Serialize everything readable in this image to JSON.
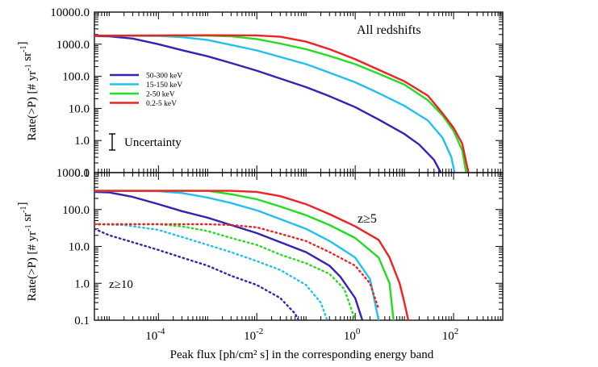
{
  "chart_data": [
    {
      "type": "line",
      "panel": "top",
      "ylabel": "Rate(>P) [# yr⁻¹ sr⁻¹]",
      "xlabel": "",
      "annotation": "All redshifts",
      "x_scale": "log",
      "y_scale": "log",
      "xlim": [
        5e-06,
        1000
      ],
      "ylim": [
        0.1,
        10000
      ],
      "y_tick_labels": [
        "10000.0",
        "1000.0",
        "100.0",
        "10.0",
        "1.0",
        "0.1"
      ],
      "legend": {
        "placement": "left",
        "entries": [
          "50-300 keV",
          "15-150 keV",
          "2-50 keV",
          "0.2-5 keV"
        ]
      },
      "uncertainty_label": "Uncertainty",
      "series": [
        {
          "name": "50-300 keV",
          "color": "#3a1fb5",
          "style": "solid",
          "points": [
            [
              5e-06,
              1800
            ],
            [
              1e-05,
              1750
            ],
            [
              3e-05,
              1500
            ],
            [
              0.0001,
              1000
            ],
            [
              0.0003,
              650
            ],
            [
              0.001,
              420
            ],
            [
              0.003,
              260
            ],
            [
              0.01,
              150
            ],
            [
              0.03,
              85
            ],
            [
              0.1,
              46
            ],
            [
              0.3,
              24
            ],
            [
              1,
              11
            ],
            [
              3,
              4.5
            ],
            [
              10,
              1.6
            ],
            [
              20,
              0.75
            ],
            [
              40,
              0.25
            ],
            [
              55,
              0.1
            ]
          ]
        },
        {
          "name": "15-150 keV",
          "color": "#22c0f0",
          "style": "solid",
          "points": [
            [
              5e-06,
              1850
            ],
            [
              0.0001,
              1800
            ],
            [
              0.0003,
              1650
            ],
            [
              0.001,
              1350
            ],
            [
              0.003,
              950
            ],
            [
              0.01,
              640
            ],
            [
              0.03,
              400
            ],
            [
              0.1,
              240
            ],
            [
              0.3,
              130
            ],
            [
              1,
              65
            ],
            [
              3,
              30
            ],
            [
              10,
              12
            ],
            [
              30,
              4.2
            ],
            [
              60,
              1.2
            ],
            [
              90,
              0.3
            ],
            [
              105,
              0.1
            ]
          ]
        },
        {
          "name": "2-50 keV",
          "color": "#22dd22",
          "style": "solid",
          "points": [
            [
              5e-06,
              1850
            ],
            [
              0.001,
              1850
            ],
            [
              0.003,
              1750
            ],
            [
              0.01,
              1450
            ],
            [
              0.03,
              1050
            ],
            [
              0.1,
              700
            ],
            [
              0.3,
              430
            ],
            [
              1,
              240
            ],
            [
              3,
              120
            ],
            [
              10,
              55
            ],
            [
              30,
              18
            ],
            [
              60,
              6
            ],
            [
              100,
              2
            ],
            [
              150,
              0.5
            ],
            [
              180,
              0.1
            ]
          ]
        },
        {
          "name": "0.2-5 keV",
          "color": "#ee2222",
          "style": "solid",
          "points": [
            [
              5e-06,
              1850
            ],
            [
              0.001,
              1900
            ],
            [
              0.01,
              1880
            ],
            [
              0.03,
              1700
            ],
            [
              0.1,
              1200
            ],
            [
              0.3,
              700
            ],
            [
              1,
              340
            ],
            [
              3,
              160
            ],
            [
              10,
              70
            ],
            [
              30,
              25
            ],
            [
              60,
              7
            ],
            [
              100,
              2.5
            ],
            [
              150,
              0.8
            ],
            [
              200,
              0.1
            ]
          ]
        }
      ]
    },
    {
      "type": "line",
      "panel": "bottom",
      "ylabel": "Rate(>P) [# yr⁻¹ sr⁻¹]",
      "xlabel": "Peak flux [ph/cm² s] in the corresponding energy band",
      "annotations": [
        "z≥5",
        "z≥10"
      ],
      "x_scale": "log",
      "y_scale": "log",
      "xlim": [
        5e-06,
        1000
      ],
      "ylim": [
        0.1,
        1000
      ],
      "y_tick_labels": [
        "1000.0",
        "100.0",
        "10.0",
        "1.0",
        "0.1"
      ],
      "x_tick_labels": [
        "10-4",
        "10-2",
        "100",
        "102"
      ],
      "series": [
        {
          "name": "50-300 keV (z≥5)",
          "color": "#3a1fb5",
          "style": "solid",
          "points": [
            [
              5e-06,
              300
            ],
            [
              1e-05,
              290
            ],
            [
              3e-05,
              220
            ],
            [
              0.0001,
              140
            ],
            [
              0.0003,
              90
            ],
            [
              0.001,
              60
            ],
            [
              0.003,
              38
            ],
            [
              0.01,
              23
            ],
            [
              0.03,
              13
            ],
            [
              0.1,
              7
            ],
            [
              0.3,
              3
            ],
            [
              0.5,
              1.5
            ],
            [
              1,
              0.4
            ],
            [
              1.4,
              0.1
            ]
          ]
        },
        {
          "name": "15-150 keV (z≥5)",
          "color": "#22c0f0",
          "style": "solid",
          "points": [
            [
              5e-06,
              320
            ],
            [
              0.0001,
              315
            ],
            [
              0.0003,
              280
            ],
            [
              0.001,
              210
            ],
            [
              0.003,
              150
            ],
            [
              0.01,
              95
            ],
            [
              0.03,
              55
            ],
            [
              0.1,
              30
            ],
            [
              0.3,
              14
            ],
            [
              1,
              5
            ],
            [
              2,
              1.3
            ],
            [
              3,
              0.1
            ]
          ]
        },
        {
          "name": "2-50 keV (z≥5)",
          "color": "#22dd22",
          "style": "solid",
          "points": [
            [
              5e-06,
              320
            ],
            [
              0.001,
              320
            ],
            [
              0.003,
              260
            ],
            [
              0.01,
              190
            ],
            [
              0.03,
              120
            ],
            [
              0.1,
              70
            ],
            [
              0.3,
              38
            ],
            [
              1,
              17
            ],
            [
              3,
              5
            ],
            [
              5,
              1
            ],
            [
              6,
              0.1
            ]
          ]
        },
        {
          "name": "0.2-5 keV (z≥5)",
          "color": "#ee2222",
          "style": "solid",
          "points": [
            [
              5e-06,
              320
            ],
            [
              0.003,
              320
            ],
            [
              0.01,
              300
            ],
            [
              0.03,
              230
            ],
            [
              0.1,
              140
            ],
            [
              0.3,
              75
            ],
            [
              1,
              35
            ],
            [
              3,
              15
            ],
            [
              5,
              5
            ],
            [
              8,
              1
            ],
            [
              10,
              0.3
            ],
            [
              12,
              0.1
            ]
          ]
        },
        {
          "name": "50-300 keV (z≥10)",
          "color": "#3a1fb5",
          "style": "dotted",
          "points": [
            [
              5e-06,
              30
            ],
            [
              1e-05,
              20
            ],
            [
              3e-05,
              13
            ],
            [
              0.0001,
              8
            ],
            [
              0.0003,
              5
            ],
            [
              0.001,
              3
            ],
            [
              0.003,
              1.6
            ],
            [
              0.01,
              0.9
            ],
            [
              0.03,
              0.4
            ],
            [
              0.06,
              0.15
            ],
            [
              0.07,
              0.1
            ]
          ]
        },
        {
          "name": "15-150 keV (z≥10)",
          "color": "#22c0f0",
          "style": "dotted",
          "points": [
            [
              5e-06,
              40
            ],
            [
              2e-05,
              38
            ],
            [
              0.0001,
              28
            ],
            [
              0.0003,
              18
            ],
            [
              0.001,
              11
            ],
            [
              0.003,
              7
            ],
            [
              0.01,
              4
            ],
            [
              0.03,
              2.3
            ],
            [
              0.1,
              0.9
            ],
            [
              0.2,
              0.3
            ],
            [
              0.27,
              0.1
            ]
          ]
        },
        {
          "name": "2-50 keV (z≥10)",
          "color": "#22dd22",
          "style": "dotted",
          "points": [
            [
              5e-06,
              40
            ],
            [
              0.0001,
              40
            ],
            [
              0.0003,
              35
            ],
            [
              0.001,
              26
            ],
            [
              0.003,
              17
            ],
            [
              0.01,
              11
            ],
            [
              0.03,
              6
            ],
            [
              0.1,
              3.5
            ],
            [
              0.3,
              1.8
            ],
            [
              0.6,
              0.7
            ],
            [
              1,
              0.1
            ]
          ]
        },
        {
          "name": "0.2-5 keV (z≥10)",
          "color": "#ee2222",
          "style": "dotted",
          "points": [
            [
              5e-06,
              40
            ],
            [
              0.001,
              40
            ],
            [
              0.003,
              38
            ],
            [
              0.01,
              33
            ],
            [
              0.03,
              22
            ],
            [
              0.1,
              14
            ],
            [
              0.3,
              7
            ],
            [
              1,
              3
            ],
            [
              2,
              1
            ],
            [
              3,
              0.2
            ]
          ]
        }
      ]
    }
  ]
}
